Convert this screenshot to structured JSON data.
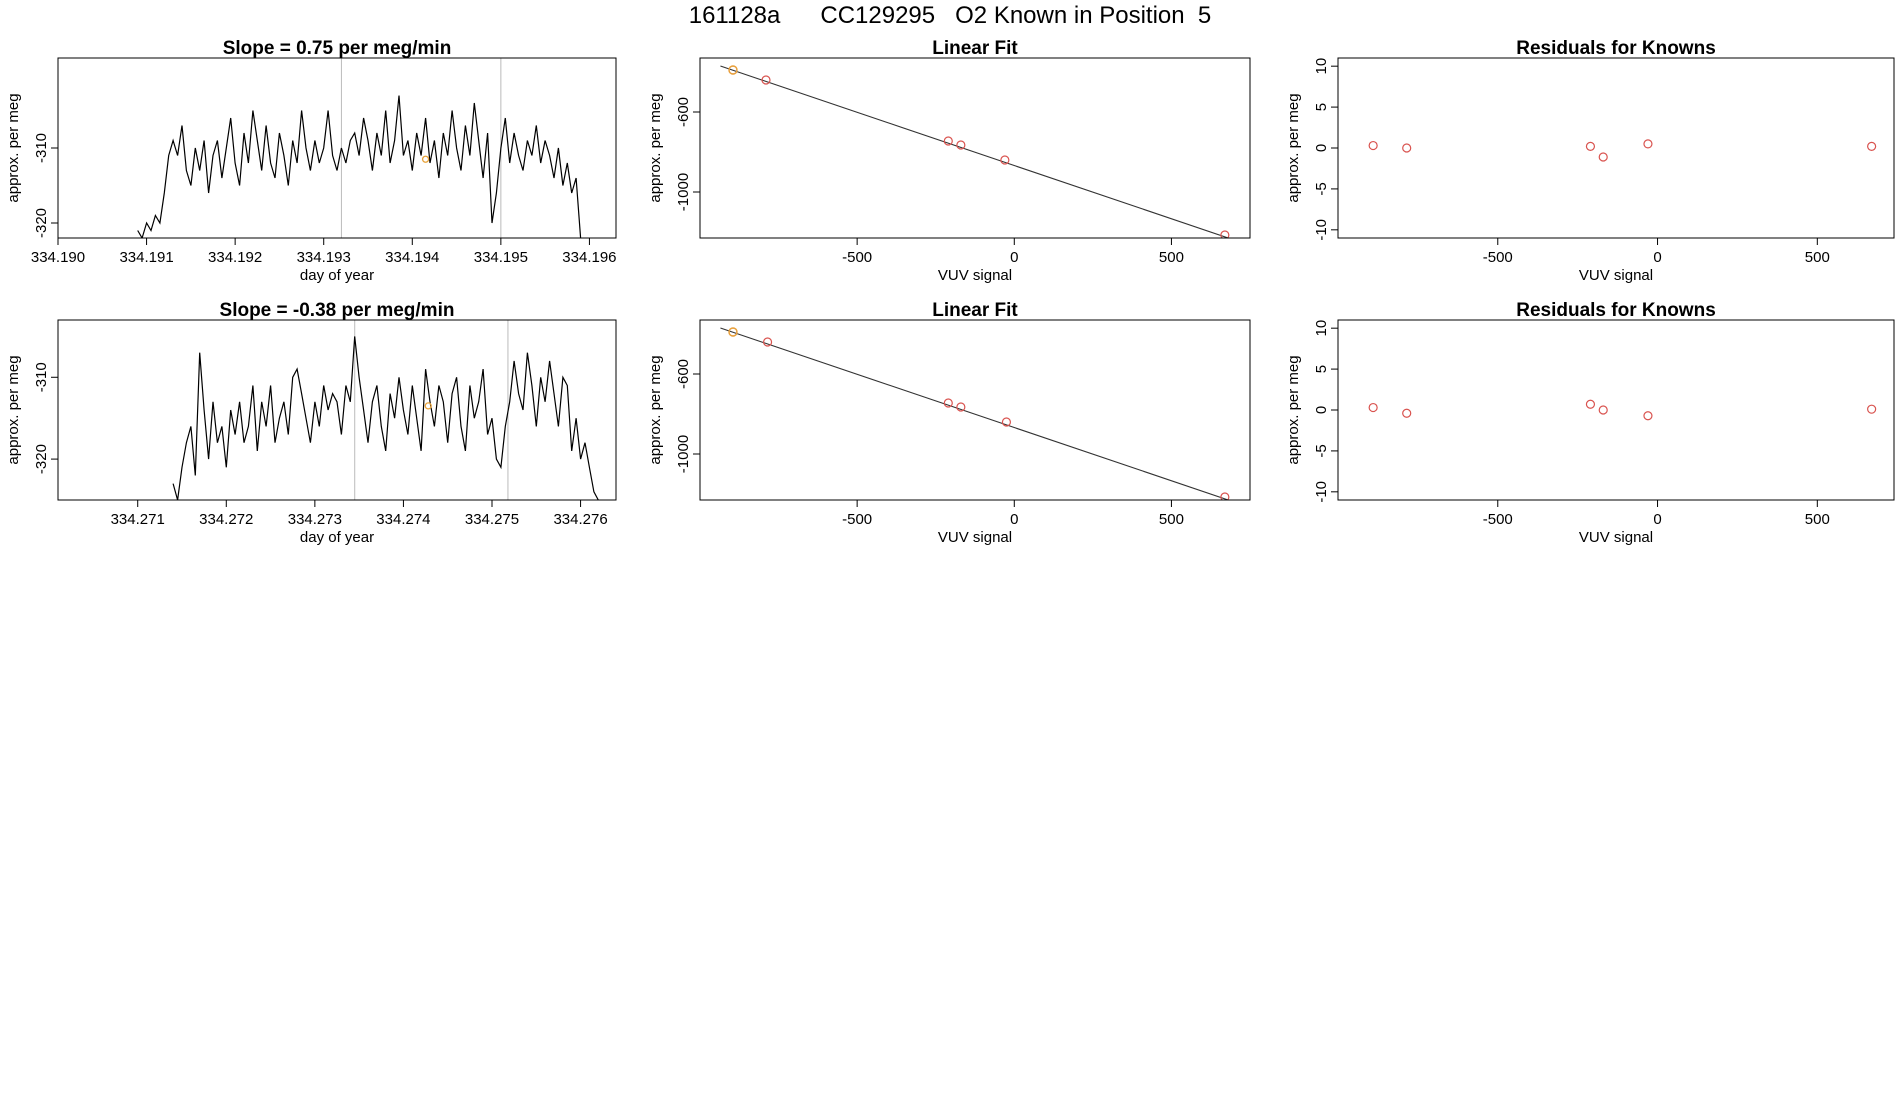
{
  "page_title": "161128a      CC129295   O2 Known in Position  5",
  "chart_data": [
    {
      "type": "line",
      "title": "Slope =  0.75  per meg/min",
      "xlabel": "day of year",
      "ylabel": "approx. per meg",
      "xlim": [
        334.19,
        334.1963
      ],
      "ylim": [
        -322,
        -298
      ],
      "xticks": [
        "334.190",
        "334.191",
        "334.192",
        "334.193",
        "334.194",
        "334.195",
        "334.196"
      ],
      "yticks": [
        "-320",
        "-310"
      ],
      "vlines": [
        334.1932,
        334.195
      ],
      "highlight": {
        "x": 334.19415,
        "y": -311.5,
        "color": "#e8a33a"
      },
      "series": [
        {
          "x": [
            334.1909,
            334.19095,
            334.191,
            334.19105,
            334.1911,
            334.19115,
            334.1912,
            334.19125,
            334.1913,
            334.19135,
            334.1914,
            334.19145,
            334.1915,
            334.19155,
            334.1916,
            334.19165,
            334.1917,
            334.19175,
            334.1918,
            334.19185,
            334.1919,
            334.19195,
            334.192,
            334.19205,
            334.1921,
            334.19215,
            334.1922,
            334.19225,
            334.1923,
            334.19235,
            334.1924,
            334.19245,
            334.1925,
            334.19255,
            334.1926,
            334.19265,
            334.1927,
            334.19275,
            334.1928,
            334.19285,
            334.1929,
            334.19295,
            334.193,
            334.19305,
            334.1931,
            334.19315,
            334.1932,
            334.19325,
            334.1933,
            334.19335,
            334.1934,
            334.19345,
            334.1935,
            334.19355,
            334.1936,
            334.19365,
            334.1937,
            334.19375,
            334.1938,
            334.19385,
            334.1939,
            334.19395,
            334.194,
            334.19405,
            334.1941,
            334.19415,
            334.1942,
            334.19425,
            334.1943,
            334.19435,
            334.1944,
            334.19445,
            334.1945,
            334.19455,
            334.1946,
            334.19465,
            334.1947,
            334.19475,
            334.1948,
            334.19485,
            334.1949,
            334.19495,
            334.195,
            334.19505,
            334.1951,
            334.19515,
            334.1952,
            334.19525,
            334.1953,
            334.19535,
            334.1954,
            334.19545,
            334.1955,
            334.19555,
            334.1956,
            334.19565,
            334.1957,
            334.19575,
            334.1958,
            334.19585,
            334.1959
          ],
          "values": [
            -321,
            -322,
            -320,
            -321,
            -319,
            -320,
            -316,
            -311,
            -309,
            -311,
            -307,
            -313,
            -315,
            -310,
            -313,
            -309,
            -316,
            -311,
            -309,
            -314,
            -310,
            -306,
            -312,
            -315,
            -308,
            -312,
            -305,
            -309,
            -313,
            -307,
            -312,
            -314,
            -308,
            -311,
            -315,
            -309,
            -312,
            -305,
            -310,
            -313,
            -309,
            -312,
            -310,
            -305,
            -311,
            -313,
            -310,
            -312,
            -309,
            -308,
            -311,
            -306,
            -309,
            -313,
            -308,
            -311,
            -305,
            -312,
            -309,
            -303,
            -311,
            -309,
            -313,
            -308,
            -311,
            -306,
            -312,
            -309,
            -314,
            -308,
            -311,
            -305,
            -310,
            -313,
            -307,
            -311,
            -304,
            -309,
            -314,
            -308,
            -320,
            -316,
            -310,
            -306,
            -312,
            -308,
            -311,
            -313,
            -309,
            -311,
            -307,
            -312,
            -309,
            -311,
            -314,
            -310,
            -315,
            -312,
            -316,
            -314,
            -322
          ]
        }
      ]
    },
    {
      "type": "scatter",
      "title": "Linear Fit",
      "xlabel": "VUV signal",
      "ylabel": "approx. per meg",
      "xlim": [
        -1000,
        750
      ],
      "ylim": [
        -1230,
        -330
      ],
      "xticks": [
        "-500",
        "0",
        "500"
      ],
      "yticks": [
        "-1000",
        "-600"
      ],
      "fit_line": {
        "x": [
          -935,
          690
        ],
        "y": [
          -370,
          -1235
        ]
      },
      "points": {
        "x": [
          -895,
          -790,
          -210,
          -170,
          -30,
          670
        ],
        "y": [
          -390,
          -440,
          -745,
          -765,
          -840,
          -1215
        ]
      },
      "highlight": {
        "x": -895,
        "y": -390,
        "color": "#e8a33a"
      }
    },
    {
      "type": "scatter",
      "title": "Residuals for Knowns",
      "xlabel": "VUV signal",
      "ylabel": "approx. per meg",
      "xlim": [
        -1000,
        740
      ],
      "ylim": [
        -11,
        11
      ],
      "xticks": [
        "-500",
        "0",
        "500"
      ],
      "yticks": [
        "-10",
        "-5",
        "0",
        "5",
        "10"
      ],
      "points": {
        "x": [
          -890,
          -785,
          -210,
          -170,
          -30,
          670
        ],
        "y": [
          0.3,
          0.0,
          0.2,
          -1.1,
          0.5,
          0.2
        ]
      }
    },
    {
      "type": "line",
      "title": "Slope =  -0.38  per meg/min",
      "xlabel": "day of year",
      "ylabel": "approx. per meg",
      "xlim": [
        334.2701,
        334.2764
      ],
      "ylim": [
        -325,
        -303
      ],
      "xticks": [
        "334.271",
        "334.272",
        "334.273",
        "334.274",
        "334.275",
        "334.276"
      ],
      "yticks": [
        "-320",
        "-310"
      ],
      "vlines": [
        334.27345,
        334.27518
      ],
      "highlight": {
        "x": 334.27428,
        "y": -313.5,
        "color": "#e8a33a"
      },
      "series": [
        {
          "x": [
            334.2714,
            334.27145,
            334.2715,
            334.27155,
            334.2716,
            334.27165,
            334.2717,
            334.27175,
            334.2718,
            334.27185,
            334.2719,
            334.27195,
            334.272,
            334.27205,
            334.2721,
            334.27215,
            334.2722,
            334.27225,
            334.2723,
            334.27235,
            334.2724,
            334.27245,
            334.2725,
            334.27255,
            334.2726,
            334.27265,
            334.2727,
            334.27275,
            334.2728,
            334.27285,
            334.2729,
            334.27295,
            334.273,
            334.27305,
            334.2731,
            334.27315,
            334.2732,
            334.27325,
            334.2733,
            334.27335,
            334.2734,
            334.27345,
            334.2735,
            334.27355,
            334.2736,
            334.27365,
            334.2737,
            334.27375,
            334.2738,
            334.27385,
            334.2739,
            334.27395,
            334.274,
            334.27405,
            334.2741,
            334.27415,
            334.2742,
            334.27425,
            334.2743,
            334.27435,
            334.2744,
            334.27445,
            334.2745,
            334.27455,
            334.2746,
            334.27465,
            334.2747,
            334.27475,
            334.2748,
            334.27485,
            334.2749,
            334.27495,
            334.275,
            334.27505,
            334.2751,
            334.27515,
            334.2752,
            334.27525,
            334.2753,
            334.27535,
            334.2754,
            334.27545,
            334.2755,
            334.27555,
            334.2756,
            334.27565,
            334.2757,
            334.27575,
            334.2758,
            334.27585,
            334.2759,
            334.27595,
            334.276,
            334.27605,
            334.2761,
            334.27615,
            334.2762
          ],
          "values": [
            -323,
            -325,
            -321,
            -318,
            -316,
            -322,
            -307,
            -314,
            -320,
            -313,
            -318,
            -316,
            -321,
            -314,
            -317,
            -313,
            -318,
            -316,
            -311,
            -319,
            -313,
            -316,
            -311,
            -318,
            -315,
            -313,
            -317,
            -310,
            -309,
            -312,
            -315,
            -318,
            -313,
            -316,
            -311,
            -314,
            -312,
            -313,
            -317,
            -311,
            -313,
            -305,
            -310,
            -314,
            -318,
            -313,
            -311,
            -316,
            -319,
            -312,
            -315,
            -310,
            -314,
            -317,
            -311,
            -315,
            -319,
            -309,
            -313,
            -316,
            -311,
            -313,
            -318,
            -312,
            -310,
            -316,
            -319,
            -311,
            -315,
            -313,
            -309,
            -317,
            -315,
            -320,
            -321,
            -316,
            -313,
            -308,
            -312,
            -314,
            -307,
            -311,
            -316,
            -310,
            -313,
            -308,
            -312,
            -316,
            -310,
            -311,
            -319,
            -315,
            -320,
            -318,
            -321,
            -324,
            -325
          ]
        }
      ]
    },
    {
      "type": "scatter",
      "title": "Linear Fit",
      "xlabel": "VUV signal",
      "ylabel": "approx. per meg",
      "xlim": [
        -1000,
        750
      ],
      "ylim": [
        -1230,
        -330
      ],
      "xticks": [
        "-500",
        "0",
        "500"
      ],
      "yticks": [
        "-1000",
        "-600"
      ],
      "fit_line": {
        "x": [
          -935,
          690
        ],
        "y": [
          -370,
          -1235
        ]
      },
      "points": {
        "x": [
          -895,
          -785,
          -210,
          -170,
          -25,
          670
        ],
        "y": [
          -390,
          -440,
          -745,
          -765,
          -840,
          -1215
        ]
      },
      "highlight": {
        "x": -895,
        "y": -390,
        "color": "#e8a33a"
      }
    },
    {
      "type": "scatter",
      "title": "Residuals for Knowns",
      "xlabel": "VUV signal",
      "ylabel": "approx. per meg",
      "xlim": [
        -1000,
        740
      ],
      "ylim": [
        -11,
        11
      ],
      "xticks": [
        "-500",
        "0",
        "500"
      ],
      "yticks": [
        "-10",
        "-5",
        "0",
        "5",
        "10"
      ],
      "points": {
        "x": [
          -890,
          -785,
          -210,
          -170,
          -30,
          670
        ],
        "y": [
          0.3,
          -0.4,
          0.7,
          0.0,
          -0.7,
          0.1
        ]
      }
    }
  ],
  "colors": {
    "line": "#000000",
    "point_red": "#d9534f",
    "point_orange": "#e8a33a",
    "vline": "#bbbbbb"
  }
}
